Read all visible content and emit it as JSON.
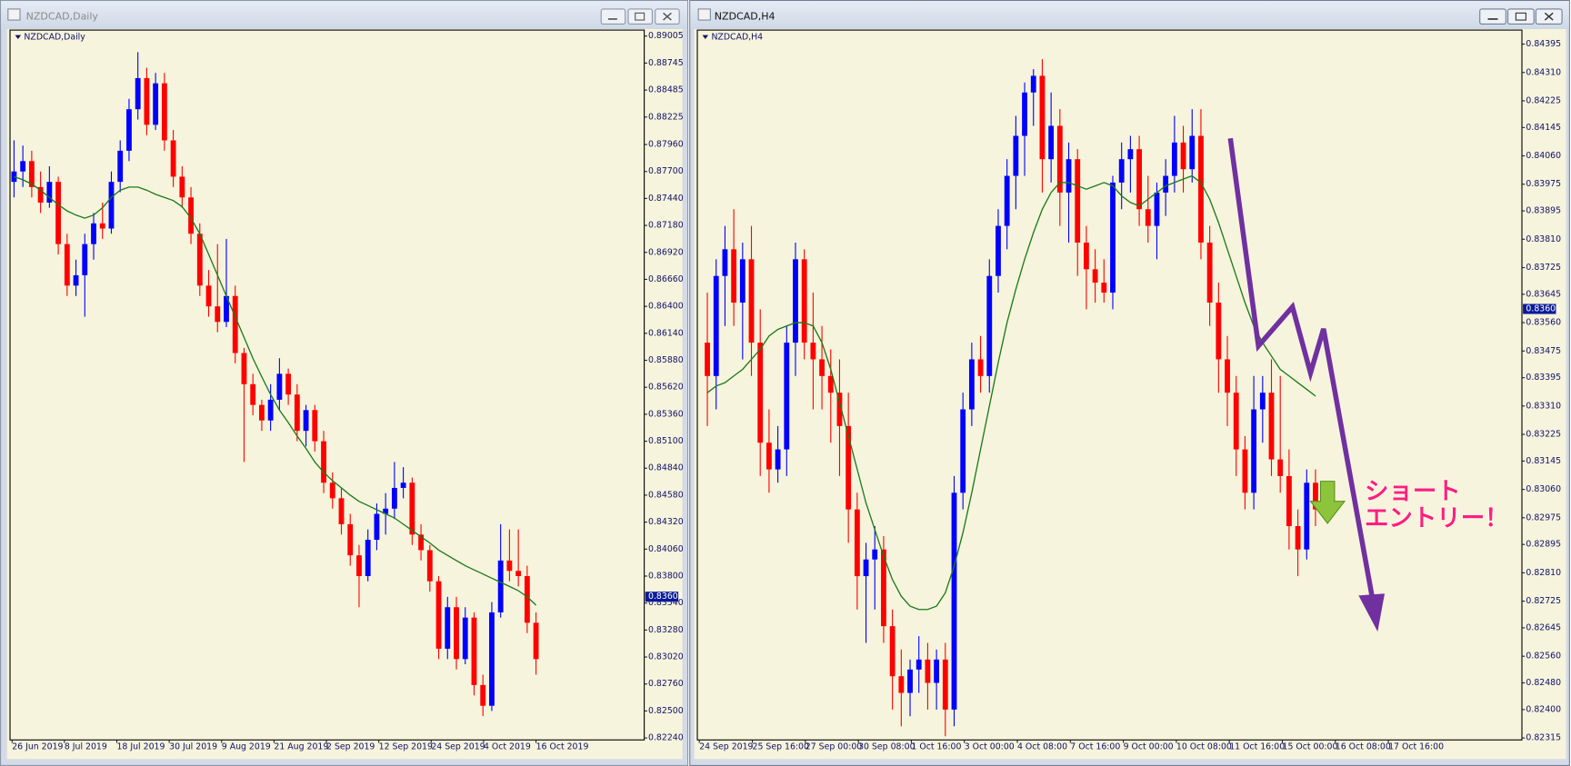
{
  "chart_data": [
    {
      "type": "candlestick",
      "window_title": "NZDCAD,Daily",
      "label": "NZDCAD,Daily",
      "up_color": "#0000ff",
      "down_color": "#ff0000",
      "ma_color": "#1a7a1a",
      "ylim": [
        0.8224,
        0.89005
      ],
      "yticks": [
        0.89005,
        0.88745,
        0.88485,
        0.88225,
        {
          "value": 0.8796,
          "label": "0.87960"
        },
        {
          "value": 0.877,
          "label": "0.87700"
        },
        {
          "value": 0.8744,
          "label": "0.87440"
        },
        {
          "value": 0.8718,
          "label": "0.87180"
        },
        {
          "value": 0.8692,
          "label": "0.86920"
        },
        {
          "value": 0.8666,
          "label": "0.86660"
        },
        {
          "value": 0.864,
          "label": "0.86400"
        },
        {
          "value": 0.8614,
          "label": "0.86140"
        },
        {
          "value": 0.8588,
          "label": "0.85880"
        },
        {
          "value": 0.8562,
          "label": "0.85620"
        },
        {
          "value": 0.8536,
          "label": "0.85360"
        },
        {
          "value": 0.851,
          "label": "0.85100"
        },
        {
          "value": 0.8484,
          "label": "0.84840"
        },
        {
          "value": 0.8458,
          "label": "0.84580"
        },
        {
          "value": 0.8432,
          "label": "0.84320"
        },
        {
          "value": 0.8406,
          "label": "0.84060"
        },
        {
          "value": 0.838,
          "label": "0.83800"
        },
        {
          "value": 0.8354,
          "label": "0.83540"
        },
        {
          "value": 0.8328,
          "label": "0.83280"
        },
        {
          "value": 0.8302,
          "label": "0.83020"
        },
        {
          "value": 0.8276,
          "label": "0.82760"
        },
        {
          "value": 0.825,
          "label": "0.82500"
        },
        {
          "value": 0.8224,
          "label": "0.82240"
        }
      ],
      "current_price": 0.83601,
      "xlabels": [
        "26 Jun 2019",
        "8 Jul 2019",
        "18 Jul 2019",
        "30 Jul 2019",
        "9 Aug 2019",
        "21 Aug 2019",
        "2 Sep 2019",
        "12 Sep 2019",
        "24 Sep 2019",
        "4 Oct 2019",
        "16 Oct 2019"
      ],
      "candles": [
        [
          0.876,
          0.88,
          0.8745,
          0.877
        ],
        [
          0.877,
          0.8795,
          0.8755,
          0.878
        ],
        [
          0.878,
          0.879,
          0.8745,
          0.8755
        ],
        [
          0.8755,
          0.877,
          0.873,
          0.874
        ],
        [
          0.874,
          0.8775,
          0.8735,
          0.876
        ],
        [
          0.876,
          0.8765,
          0.869,
          0.87
        ],
        [
          0.87,
          0.871,
          0.865,
          0.866
        ],
        [
          0.866,
          0.8685,
          0.865,
          0.867
        ],
        [
          0.867,
          0.871,
          0.863,
          0.87
        ],
        [
          0.87,
          0.873,
          0.8685,
          0.872
        ],
        [
          0.872,
          0.874,
          0.8705,
          0.8715
        ],
        [
          0.8715,
          0.877,
          0.871,
          0.876
        ],
        [
          0.876,
          0.88,
          0.875,
          0.879
        ],
        [
          0.879,
          0.884,
          0.878,
          0.883
        ],
        [
          0.883,
          0.8885,
          0.882,
          0.886
        ],
        [
          0.886,
          0.887,
          0.8805,
          0.8815
        ],
        [
          0.8815,
          0.8865,
          0.881,
          0.8855
        ],
        [
          0.8855,
          0.8865,
          0.879,
          0.88
        ],
        [
          0.88,
          0.881,
          0.8755,
          0.8765
        ],
        [
          0.8765,
          0.8775,
          0.8735,
          0.8745
        ],
        [
          0.8745,
          0.8755,
          0.87,
          0.871
        ],
        [
          0.871,
          0.872,
          0.865,
          0.866
        ],
        [
          0.866,
          0.8675,
          0.863,
          0.864
        ],
        [
          0.864,
          0.87,
          0.8615,
          0.8625
        ],
        [
          0.8625,
          0.8705,
          0.862,
          0.865
        ],
        [
          0.865,
          0.866,
          0.8585,
          0.8595
        ],
        [
          0.8595,
          0.86,
          0.849,
          0.8565
        ],
        [
          0.8565,
          0.8575,
          0.8535,
          0.8545
        ],
        [
          0.8545,
          0.855,
          0.852,
          0.853
        ],
        [
          0.853,
          0.8565,
          0.852,
          0.855
        ],
        [
          0.855,
          0.859,
          0.854,
          0.8575
        ],
        [
          0.8575,
          0.858,
          0.8545,
          0.8555
        ],
        [
          0.8555,
          0.8565,
          0.851,
          0.852
        ],
        [
          0.852,
          0.8545,
          0.8505,
          0.854
        ],
        [
          0.854,
          0.8545,
          0.85,
          0.851
        ],
        [
          0.851,
          0.852,
          0.846,
          0.847
        ],
        [
          0.847,
          0.848,
          0.8445,
          0.8455
        ],
        [
          0.8455,
          0.8465,
          0.842,
          0.843
        ],
        [
          0.843,
          0.844,
          0.839,
          0.84
        ],
        [
          0.84,
          0.841,
          0.835,
          0.838
        ],
        [
          0.838,
          0.8425,
          0.8375,
          0.8415
        ],
        [
          0.8415,
          0.845,
          0.8405,
          0.844
        ],
        [
          0.844,
          0.846,
          0.842,
          0.8445
        ],
        [
          0.8445,
          0.849,
          0.8435,
          0.8465
        ],
        [
          0.8465,
          0.8485,
          0.8455,
          0.847
        ],
        [
          0.847,
          0.8475,
          0.841,
          0.842
        ],
        [
          0.842,
          0.843,
          0.8395,
          0.8405
        ],
        [
          0.8405,
          0.841,
          0.8365,
          0.8375
        ],
        [
          0.8375,
          0.838,
          0.83,
          0.831
        ],
        [
          0.831,
          0.836,
          0.83,
          0.835
        ],
        [
          0.835,
          0.836,
          0.829,
          0.83
        ],
        [
          0.83,
          0.835,
          0.8295,
          0.834
        ],
        [
          0.834,
          0.8345,
          0.8265,
          0.8275
        ],
        [
          0.8275,
          0.8285,
          0.8245,
          0.8255
        ],
        [
          0.8255,
          0.8355,
          0.825,
          0.8345
        ],
        [
          0.8345,
          0.843,
          0.834,
          0.8395
        ],
        [
          0.8395,
          0.8425,
          0.8375,
          0.8385
        ],
        [
          0.8385,
          0.8425,
          0.837,
          0.838
        ],
        [
          0.838,
          0.839,
          0.8325,
          0.8335
        ],
        [
          0.8335,
          0.8345,
          0.8285,
          0.83
        ]
      ],
      "ma": [
        0.8765,
        0.8762,
        0.8758,
        0.8752,
        0.8745,
        0.8738,
        0.8732,
        0.8728,
        0.8725,
        0.8728,
        0.8735,
        0.8745,
        0.8752,
        0.8755,
        0.8755,
        0.8752,
        0.8748,
        0.8745,
        0.8742,
        0.8736,
        0.8725,
        0.871,
        0.869,
        0.867,
        0.865,
        0.863,
        0.861,
        0.859,
        0.8572,
        0.8555,
        0.854,
        0.8528,
        0.8515,
        0.8503,
        0.849,
        0.848,
        0.8472,
        0.8465,
        0.8458,
        0.8452,
        0.8448,
        0.8444,
        0.844,
        0.8436,
        0.843,
        0.8424,
        0.8418,
        0.8412,
        0.8405,
        0.84,
        0.8395,
        0.839,
        0.8386,
        0.8382,
        0.8378,
        0.8374,
        0.837,
        0.8366,
        0.836,
        0.8352
      ]
    },
    {
      "type": "candlestick",
      "window_title": "NZDCAD,H4",
      "label": "NZDCAD,H4",
      "up_color": "#0000ff",
      "down_color": "#ff0000",
      "ma_color": "#1a7a1a",
      "ylim": [
        0.82315,
        0.84395
      ],
      "yticks": [
        0.84395,
        {
          "value": 0.8431,
          "label": "0.84310"
        },
        0.84225,
        0.84145,
        {
          "value": 0.8406,
          "label": "0.84060"
        },
        0.83975,
        0.83895,
        {
          "value": 0.8381,
          "label": "0.83810"
        },
        0.83725,
        0.83645,
        {
          "value": 0.8356,
          "label": "0.83560"
        },
        0.83475,
        0.83395,
        {
          "value": 0.8331,
          "label": "0.83310"
        },
        0.83225,
        0.83145,
        {
          "value": 0.8306,
          "label": "0.83060"
        },
        0.82975,
        0.82895,
        {
          "value": 0.8281,
          "label": "0.82810"
        },
        0.82725,
        0.82645,
        {
          "value": 0.8256,
          "label": "0.82560"
        },
        {
          "value": 0.8248,
          "label": "0.82480"
        },
        {
          "value": 0.824,
          "label": "0.82400"
        },
        0.82315
      ],
      "current_price": 0.83601,
      "xlabels": [
        "24 Sep 2019",
        "25 Sep 16:00",
        "27 Sep 00:00",
        "30 Sep 08:00",
        "1 Oct 16:00",
        "3 Oct 00:00",
        "4 Oct 08:00",
        "7 Oct 16:00",
        "9 Oct 00:00",
        "10 Oct 08:00",
        "11 Oct 16:00",
        "15 Oct 00:00",
        "16 Oct 08:00",
        "17 Oct 16:00"
      ],
      "candles": [
        [
          0.835,
          0.8365,
          0.8325,
          0.834
        ],
        [
          0.834,
          0.8375,
          0.833,
          0.837
        ],
        [
          0.837,
          0.8385,
          0.8355,
          0.8378
        ],
        [
          0.8378,
          0.839,
          0.8355,
          0.8362
        ],
        [
          0.8362,
          0.838,
          0.8345,
          0.8375
        ],
        [
          0.8375,
          0.8385,
          0.834,
          0.835
        ],
        [
          0.835,
          0.836,
          0.831,
          0.832
        ],
        [
          0.832,
          0.833,
          0.8305,
          0.8312
        ],
        [
          0.8312,
          0.8325,
          0.8308,
          0.8318
        ],
        [
          0.8318,
          0.8355,
          0.831,
          0.835
        ],
        [
          0.835,
          0.838,
          0.834,
          0.8375
        ],
        [
          0.8375,
          0.8378,
          0.8345,
          0.835
        ],
        [
          0.835,
          0.8365,
          0.833,
          0.8345
        ],
        [
          0.8345,
          0.8355,
          0.833,
          0.834
        ],
        [
          0.834,
          0.8348,
          0.832,
          0.8335
        ],
        [
          0.8335,
          0.8345,
          0.831,
          0.8325
        ],
        [
          0.8325,
          0.8335,
          0.829,
          0.83
        ],
        [
          0.83,
          0.8305,
          0.827,
          0.828
        ],
        [
          0.828,
          0.829,
          0.826,
          0.8285
        ],
        [
          0.8285,
          0.8295,
          0.827,
          0.8288
        ],
        [
          0.8288,
          0.8292,
          0.826,
          0.8265
        ],
        [
          0.8265,
          0.827,
          0.824,
          0.825
        ],
        [
          0.825,
          0.8258,
          0.8235,
          0.8245
        ],
        [
          0.8245,
          0.8255,
          0.8238,
          0.8252
        ],
        [
          0.8252,
          0.8262,
          0.8245,
          0.8255
        ],
        [
          0.8255,
          0.826,
          0.824,
          0.8248
        ],
        [
          0.8248,
          0.8258,
          0.824,
          0.8255
        ],
        [
          0.8255,
          0.826,
          0.8232,
          0.824
        ],
        [
          0.824,
          0.831,
          0.8235,
          0.8305
        ],
        [
          0.8305,
          0.8335,
          0.83,
          0.833
        ],
        [
          0.833,
          0.835,
          0.8325,
          0.8345
        ],
        [
          0.8345,
          0.8352,
          0.8335,
          0.834
        ],
        [
          0.834,
          0.8375,
          0.8335,
          0.837
        ],
        [
          0.837,
          0.839,
          0.8365,
          0.8385
        ],
        [
          0.8385,
          0.8405,
          0.8378,
          0.84
        ],
        [
          0.84,
          0.8418,
          0.839,
          0.8412
        ],
        [
          0.8412,
          0.8428,
          0.84,
          0.8425
        ],
        [
          0.8425,
          0.8432,
          0.8415,
          0.843
        ],
        [
          0.843,
          0.8435,
          0.8395,
          0.8405
        ],
        [
          0.8405,
          0.8425,
          0.8398,
          0.8415
        ],
        [
          0.8415,
          0.842,
          0.8385,
          0.8395
        ],
        [
          0.8395,
          0.841,
          0.838,
          0.8405
        ],
        [
          0.8405,
          0.8408,
          0.837,
          0.838
        ],
        [
          0.838,
          0.8385,
          0.836,
          0.8372
        ],
        [
          0.8372,
          0.8378,
          0.8362,
          0.8368
        ],
        [
          0.8368,
          0.8375,
          0.8362,
          0.8365
        ],
        [
          0.8365,
          0.84,
          0.836,
          0.8398
        ],
        [
          0.8398,
          0.841,
          0.839,
          0.8405
        ],
        [
          0.8405,
          0.8412,
          0.8395,
          0.8408
        ],
        [
          0.8408,
          0.8412,
          0.8385,
          0.839
        ],
        [
          0.839,
          0.84,
          0.838,
          0.8385
        ],
        [
          0.8385,
          0.8398,
          0.8375,
          0.8395
        ],
        [
          0.8395,
          0.8405,
          0.8388,
          0.84
        ],
        [
          0.84,
          0.8418,
          0.8395,
          0.841
        ],
        [
          0.841,
          0.8415,
          0.8395,
          0.8402
        ],
        [
          0.8402,
          0.842,
          0.8398,
          0.8412
        ],
        [
          0.8412,
          0.842,
          0.8375,
          0.838
        ],
        [
          0.838,
          0.8385,
          0.8355,
          0.8362
        ],
        [
          0.8362,
          0.8368,
          0.8335,
          0.8345
        ],
        [
          0.8345,
          0.8352,
          0.8325,
          0.8335
        ],
        [
          0.8335,
          0.834,
          0.831,
          0.8318
        ],
        [
          0.8318,
          0.8322,
          0.83,
          0.8305
        ],
        [
          0.8305,
          0.834,
          0.83,
          0.833
        ],
        [
          0.833,
          0.834,
          0.832,
          0.8335
        ],
        [
          0.8335,
          0.8345,
          0.831,
          0.8315
        ],
        [
          0.8315,
          0.834,
          0.8305,
          0.831
        ],
        [
          0.831,
          0.8318,
          0.8288,
          0.8295
        ],
        [
          0.8295,
          0.83,
          0.828,
          0.8288
        ],
        [
          0.8288,
          0.8312,
          0.8285,
          0.8308
        ],
        [
          0.8308,
          0.8312,
          0.8295,
          0.83
        ]
      ],
      "ma": [
        0.8335,
        0.8337,
        0.8338,
        0.834,
        0.8342,
        0.8345,
        0.8348,
        0.8352,
        0.8354,
        0.8355,
        0.8356,
        0.8356,
        0.8355,
        0.835,
        0.8342,
        0.8332,
        0.8322,
        0.8312,
        0.8302,
        0.8294,
        0.8286,
        0.8279,
        0.8274,
        0.8271,
        0.827,
        0.827,
        0.8271,
        0.8275,
        0.8283,
        0.8293,
        0.8305,
        0.8318,
        0.8331,
        0.8344,
        0.8356,
        0.8366,
        0.8375,
        0.8383,
        0.839,
        0.8395,
        0.8398,
        0.8398,
        0.8397,
        0.8396,
        0.8397,
        0.8398,
        0.8397,
        0.8394,
        0.8392,
        0.8391,
        0.8393,
        0.8395,
        0.8397,
        0.8398,
        0.8399,
        0.84,
        0.8398,
        0.8393,
        0.8386,
        0.8378,
        0.837,
        0.8362,
        0.8355,
        0.835,
        0.8346,
        0.8342,
        0.834,
        0.8338,
        0.8336,
        0.8334
      ],
      "annotation": [
        "ショート",
        "エントリー！"
      ]
    }
  ]
}
